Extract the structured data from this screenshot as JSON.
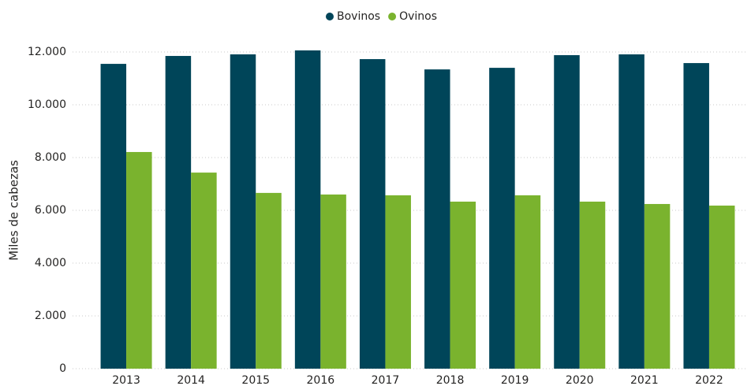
{
  "chart_data": {
    "type": "bar",
    "y_label": "Miles de cabezas",
    "categories": [
      "2013",
      "2014",
      "2015",
      "2016",
      "2017",
      "2018",
      "2019",
      "2020",
      "2021",
      "2022"
    ],
    "series": [
      {
        "name": "Bovinos",
        "color": "#004559",
        "values": [
          11550,
          11850,
          11910,
          12060,
          11730,
          11340,
          11400,
          11880,
          11910,
          11580
        ]
      },
      {
        "name": "Ovinos",
        "color": "#7ab32e",
        "values": [
          8210,
          7430,
          6660,
          6600,
          6570,
          6330,
          6570,
          6330,
          6240,
          6180
        ]
      }
    ],
    "ylim": [
      0,
      12000
    ],
    "yticks": [
      0,
      {
        "value": 2000,
        "label": "2.000"
      },
      {
        "value": 4000,
        "label": "4.000"
      },
      {
        "value": 6000,
        "label": "6.000"
      },
      {
        "value": 8000,
        "label": "8.000"
      },
      {
        "value": 10000,
        "label": "10.000"
      },
      {
        "value": 12000,
        "label": "12.000"
      }
    ],
    "grid": true,
    "legend": "top"
  }
}
